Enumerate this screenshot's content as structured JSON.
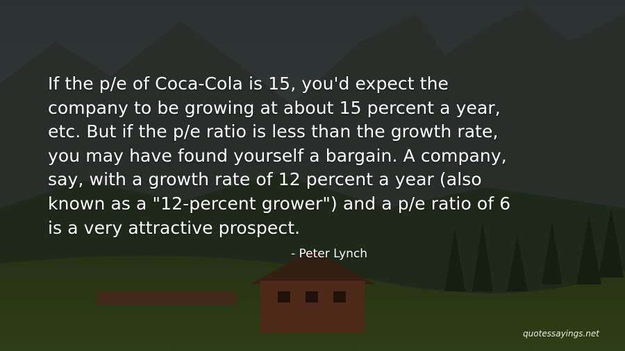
{
  "quote": {
    "lines": [
      "If the p/e of Coca-Cola is 15, you'd expect the",
      "company to be growing at about 15 percent a year,",
      "etc. But if the p/e ratio is less than the growth rate,",
      "you may have found yourself a bargain. A company,",
      "say, with a growth rate of 12 percent a year (also",
      "known as a \"12-percent grower\") and a p/e ratio of 6",
      "is a very attractive prospect."
    ],
    "author": "- Peter Lynch"
  },
  "watermark": "quotessayings.net"
}
